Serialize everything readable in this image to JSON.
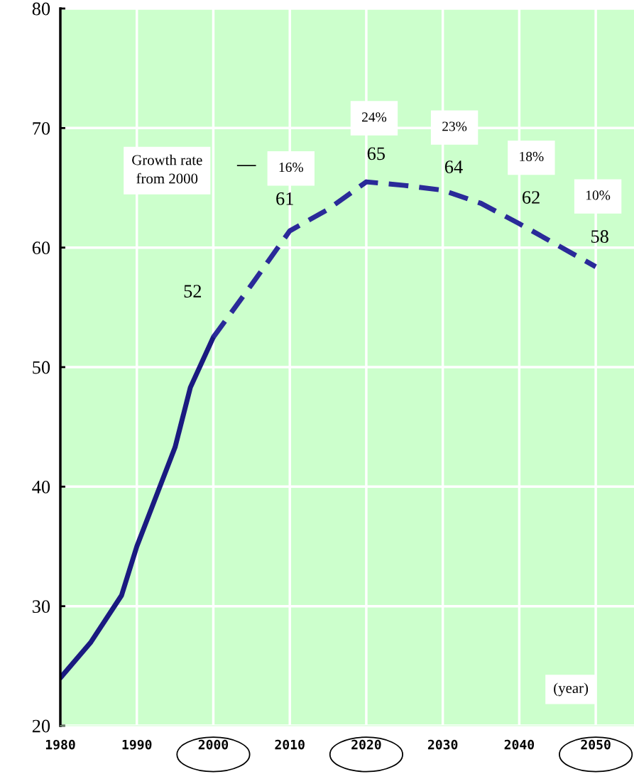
{
  "chart_data": {
    "type": "line",
    "xlabel": "(year)",
    "xlim": [
      1980,
      2055
    ],
    "xticks": [
      1980,
      1990,
      2000,
      2010,
      2020,
      2030,
      2040,
      2050
    ],
    "ylim": [
      20,
      80
    ],
    "yticks": [
      20,
      30,
      40,
      50,
      60,
      70,
      80
    ],
    "grid": true,
    "series": [
      {
        "color": "#1a1a80",
        "line_style": "solid",
        "x": [
          1980,
          1984,
          1988,
          1990,
          1995,
          1997,
          2000
        ],
        "values": [
          24.0,
          27.0,
          30.9,
          35.0,
          43.3,
          48.3,
          52.5
        ]
      },
      {
        "color": "#2a2a99",
        "line_style": "dashed",
        "x": [
          2000,
          2005,
          2010,
          2015,
          2020,
          2025,
          2030,
          2035,
          2040,
          2045,
          2050
        ],
        "values": [
          52.5,
          56.9,
          61.4,
          63.2,
          65.5,
          65.2,
          64.8,
          63.7,
          62.0,
          60.2,
          58.4
        ]
      }
    ],
    "annotations": [
      {
        "text": "52",
        "x": 2000,
        "y": 52.5
      },
      {
        "text": "61",
        "x": 2010,
        "y": 61.4
      },
      {
        "text": "65",
        "x": 2020,
        "y": 65.5
      },
      {
        "text": "64",
        "x": 2030,
        "y": 64.8
      },
      {
        "text": "62",
        "x": 2040,
        "y": 62.0
      },
      {
        "text": "58",
        "x": 2050,
        "y": 58.4
      },
      "Growth rate\nfrom 2000",
      "16%",
      "24%",
      "23%",
      "18%",
      "10%"
    ]
  }
}
